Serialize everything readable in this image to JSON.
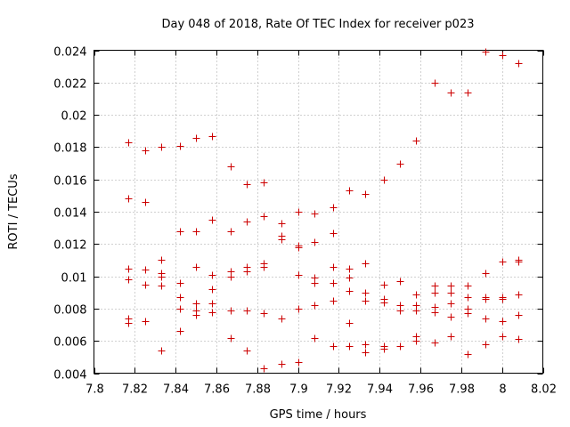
{
  "chart_data": {
    "type": "scatter",
    "title": "Day 048 of 2018, Rate Of TEC Index for receiver p023",
    "xlabel": "GPS time / hours",
    "ylabel": "ROTI / TECUs",
    "xlim": [
      7.8,
      8.02
    ],
    "ylim": [
      0.004,
      0.024
    ],
    "xticks": [
      7.8,
      7.82,
      7.84,
      7.86,
      7.88,
      7.9,
      7.92,
      7.94,
      7.96,
      7.98,
      8,
      8.02
    ],
    "xtick_labels": [
      "7.8",
      "7.82",
      "7.84",
      "7.86",
      "7.88",
      "7.9",
      "7.92",
      "7.94",
      "7.96",
      "7.98",
      "8",
      "8.02"
    ],
    "yticks": [
      0.004,
      0.006,
      0.008,
      0.01,
      0.012,
      0.014,
      0.016,
      0.018,
      0.02,
      0.022,
      0.024
    ],
    "ytick_labels": [
      "0.004",
      "0.006",
      "0.008",
      "0.01",
      "0.012",
      "0.014",
      "0.016",
      "0.018",
      "0.02",
      "0.022",
      "0.024"
    ],
    "grid": true,
    "marker": "+",
    "series": [
      {
        "name": "ROTI",
        "color": "#cc0000",
        "points": [
          [
            7.817,
            0.0183
          ],
          [
            7.817,
            0.0148
          ],
          [
            7.817,
            0.0105
          ],
          [
            7.817,
            0.0098
          ],
          [
            7.817,
            0.0074
          ],
          [
            7.817,
            0.0071
          ],
          [
            7.825,
            0.0178
          ],
          [
            7.825,
            0.0146
          ],
          [
            7.825,
            0.0104
          ],
          [
            7.825,
            0.0095
          ],
          [
            7.825,
            0.0072
          ],
          [
            7.833,
            0.018
          ],
          [
            7.833,
            0.011
          ],
          [
            7.833,
            0.0102
          ],
          [
            7.833,
            0.01
          ],
          [
            7.833,
            0.0094
          ],
          [
            7.833,
            0.0054
          ],
          [
            7.842,
            0.0181
          ],
          [
            7.842,
            0.0128
          ],
          [
            7.842,
            0.0096
          ],
          [
            7.842,
            0.0087
          ],
          [
            7.842,
            0.008
          ],
          [
            7.842,
            0.0066
          ],
          [
            7.85,
            0.0186
          ],
          [
            7.85,
            0.0128
          ],
          [
            7.85,
            0.0106
          ],
          [
            7.85,
            0.0083
          ],
          [
            7.85,
            0.0079
          ],
          [
            7.85,
            0.0076
          ],
          [
            7.858,
            0.0187
          ],
          [
            7.858,
            0.0135
          ],
          [
            7.858,
            0.0101
          ],
          [
            7.858,
            0.0092
          ],
          [
            7.858,
            0.0083
          ],
          [
            7.858,
            0.0078
          ],
          [
            7.867,
            0.0168
          ],
          [
            7.867,
            0.0128
          ],
          [
            7.867,
            0.0103
          ],
          [
            7.867,
            0.01
          ],
          [
            7.867,
            0.0079
          ],
          [
            7.867,
            0.0062
          ],
          [
            7.875,
            0.0157
          ],
          [
            7.875,
            0.0134
          ],
          [
            7.875,
            0.0106
          ],
          [
            7.875,
            0.0103
          ],
          [
            7.875,
            0.0079
          ],
          [
            7.875,
            0.0054
          ],
          [
            7.883,
            0.0158
          ],
          [
            7.883,
            0.0137
          ],
          [
            7.883,
            0.0108
          ],
          [
            7.883,
            0.0106
          ],
          [
            7.883,
            0.0077
          ],
          [
            7.883,
            0.0043
          ],
          [
            7.892,
            0.0133
          ],
          [
            7.892,
            0.0125
          ],
          [
            7.892,
            0.0123
          ],
          [
            7.892,
            0.0074
          ],
          [
            7.892,
            0.0046
          ],
          [
            7.9,
            0.014
          ],
          [
            7.9,
            0.0119
          ],
          [
            7.9,
            0.0118
          ],
          [
            7.9,
            0.0101
          ],
          [
            7.9,
            0.008
          ],
          [
            7.9,
            0.0047
          ],
          [
            7.908,
            0.0139
          ],
          [
            7.908,
            0.0121
          ],
          [
            7.908,
            0.0099
          ],
          [
            7.908,
            0.0096
          ],
          [
            7.908,
            0.0082
          ],
          [
            7.908,
            0.0062
          ],
          [
            7.917,
            0.0143
          ],
          [
            7.917,
            0.0127
          ],
          [
            7.917,
            0.0106
          ],
          [
            7.917,
            0.0096
          ],
          [
            7.917,
            0.0085
          ],
          [
            7.917,
            0.0057
          ],
          [
            7.925,
            0.0153
          ],
          [
            7.925,
            0.0105
          ],
          [
            7.925,
            0.0099
          ],
          [
            7.925,
            0.0091
          ],
          [
            7.925,
            0.0071
          ],
          [
            7.925,
            0.0057
          ],
          [
            7.933,
            0.0151
          ],
          [
            7.933,
            0.0108
          ],
          [
            7.933,
            0.009
          ],
          [
            7.933,
            0.0085
          ],
          [
            7.933,
            0.0058
          ],
          [
            7.933,
            0.0053
          ],
          [
            7.942,
            0.016
          ],
          [
            7.942,
            0.0095
          ],
          [
            7.942,
            0.0086
          ],
          [
            7.942,
            0.0084
          ],
          [
            7.942,
            0.0057
          ],
          [
            7.942,
            0.0055
          ],
          [
            7.95,
            0.017
          ],
          [
            7.95,
            0.0097
          ],
          [
            7.95,
            0.0082
          ],
          [
            7.95,
            0.0079
          ],
          [
            7.95,
            0.0057
          ],
          [
            7.958,
            0.0184
          ],
          [
            7.958,
            0.0089
          ],
          [
            7.958,
            0.0082
          ],
          [
            7.958,
            0.0079
          ],
          [
            7.958,
            0.0063
          ],
          [
            7.958,
            0.006
          ],
          [
            7.967,
            0.022
          ],
          [
            7.967,
            0.0094
          ],
          [
            7.967,
            0.009
          ],
          [
            7.967,
            0.0081
          ],
          [
            7.967,
            0.0078
          ],
          [
            7.967,
            0.0059
          ],
          [
            7.975,
            0.0214
          ],
          [
            7.975,
            0.0094
          ],
          [
            7.975,
            0.009
          ],
          [
            7.975,
            0.0083
          ],
          [
            7.975,
            0.0075
          ],
          [
            7.975,
            0.0063
          ],
          [
            7.983,
            0.0214
          ],
          [
            7.983,
            0.0094
          ],
          [
            7.983,
            0.0087
          ],
          [
            7.983,
            0.008
          ],
          [
            7.983,
            0.0077
          ],
          [
            7.983,
            0.0052
          ],
          [
            7.992,
            0.0239
          ],
          [
            7.992,
            0.0102
          ],
          [
            7.992,
            0.0087
          ],
          [
            7.992,
            0.0086
          ],
          [
            7.992,
            0.0074
          ],
          [
            7.992,
            0.0058
          ],
          [
            8.0,
            0.0237
          ],
          [
            8.0,
            0.0109
          ],
          [
            8.0,
            0.0087
          ],
          [
            8.0,
            0.0086
          ],
          [
            8.0,
            0.0072
          ],
          [
            8.0,
            0.0063
          ],
          [
            8.008,
            0.0232
          ],
          [
            8.008,
            0.011
          ],
          [
            8.008,
            0.0109
          ],
          [
            8.008,
            0.0089
          ],
          [
            8.008,
            0.0076
          ],
          [
            8.008,
            0.0061
          ]
        ]
      }
    ]
  }
}
